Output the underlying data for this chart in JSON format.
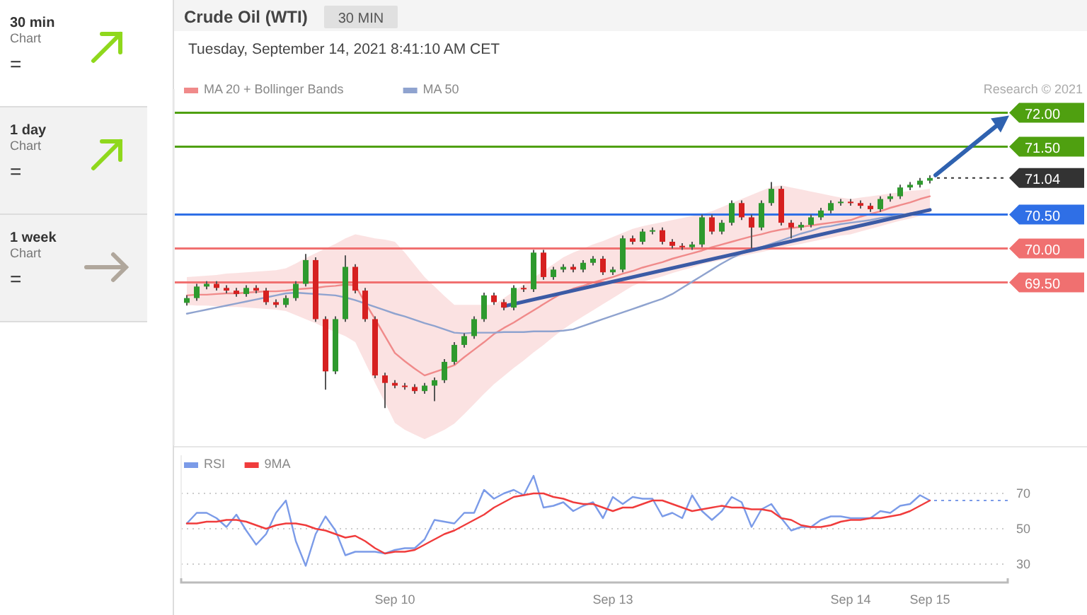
{
  "chart_data": [
    {
      "type": "other",
      "annotations": [
        "30 min",
        "Chart",
        "=",
        "1 day",
        "Chart",
        "=",
        "1 week",
        "Chart",
        "="
      ]
    },
    {
      "type": "candlestick",
      "title": "Crude Oil (WTI)",
      "subtitle": "Tuesday, September 14, 2021 8:41:10 AM CET",
      "annotations": [
        "30 MIN",
        "Research © 2021"
      ],
      "categories": [
        null,
        null,
        null,
        null,
        null,
        null,
        null,
        null,
        null,
        null,
        null,
        null,
        null,
        null,
        null,
        null,
        null,
        null,
        null,
        null,
        null,
        null,
        null,
        null,
        null,
        null,
        null,
        null,
        null,
        null,
        null,
        null,
        null,
        null,
        null,
        null,
        null,
        null,
        null,
        null,
        null,
        null,
        null,
        null,
        null,
        null,
        null,
        null,
        null,
        null,
        null,
        null,
        null,
        null,
        null,
        null,
        null,
        null,
        null,
        null,
        null,
        null,
        null,
        null,
        null,
        null,
        null,
        null,
        null,
        null,
        null,
        null,
        null,
        null,
        null,
        null
      ],
      "ohlc": [
        [
          69.2,
          69.31,
          69.16,
          69.27
        ],
        [
          69.27,
          69.48,
          69.23,
          69.44
        ],
        [
          69.44,
          69.52,
          69.4,
          69.48
        ],
        [
          69.48,
          69.52,
          69.38,
          69.42
        ],
        [
          69.42,
          69.46,
          69.34,
          69.38
        ],
        [
          69.38,
          69.42,
          69.29,
          69.33
        ],
        [
          69.33,
          69.46,
          69.29,
          69.42
        ],
        [
          69.42,
          69.46,
          69.34,
          69.38
        ],
        [
          69.38,
          69.42,
          69.17,
          69.21
        ],
        [
          69.21,
          69.25,
          69.13,
          69.17
        ],
        [
          69.17,
          69.31,
          69.13,
          69.27
        ],
        [
          69.27,
          69.52,
          69.23,
          69.48
        ],
        [
          69.48,
          69.92,
          69.44,
          69.83
        ],
        [
          69.83,
          69.87,
          68.92,
          68.96
        ],
        [
          68.96,
          69.0,
          67.92,
          68.19
        ],
        [
          68.19,
          69.0,
          68.15,
          68.96
        ],
        [
          68.96,
          69.9,
          68.92,
          69.73
        ],
        [
          69.73,
          69.77,
          69.34,
          69.38
        ],
        [
          69.38,
          69.42,
          68.92,
          68.96
        ],
        [
          68.96,
          69.0,
          68.09,
          68.13
        ],
        [
          68.13,
          68.17,
          67.65,
          68.02
        ],
        [
          68.02,
          68.06,
          67.94,
          67.98
        ],
        [
          67.98,
          68.02,
          67.92,
          67.96
        ],
        [
          67.96,
          68.0,
          67.86,
          67.9
        ],
        [
          67.9,
          68.02,
          67.86,
          67.98
        ],
        [
          67.98,
          68.1,
          67.75,
          68.06
        ],
        [
          68.06,
          68.37,
          68.02,
          68.33
        ],
        [
          68.33,
          68.62,
          68.29,
          68.58
        ],
        [
          68.58,
          68.75,
          68.54,
          68.71
        ],
        [
          68.71,
          69.0,
          68.67,
          68.96
        ],
        [
          68.96,
          69.35,
          68.92,
          69.31
        ],
        [
          69.31,
          69.35,
          69.17,
          69.21
        ],
        [
          69.21,
          69.25,
          69.09,
          69.13
        ],
        [
          69.13,
          69.46,
          69.09,
          69.42
        ],
        [
          69.42,
          69.46,
          69.36,
          69.4
        ],
        [
          69.4,
          69.98,
          69.36,
          69.94
        ],
        [
          69.94,
          69.98,
          69.54,
          69.58
        ],
        [
          69.58,
          69.73,
          69.54,
          69.69
        ],
        [
          69.69,
          69.77,
          69.65,
          69.73
        ],
        [
          69.73,
          69.77,
          69.65,
          69.69
        ],
        [
          69.69,
          69.83,
          69.65,
          69.79
        ],
        [
          69.79,
          69.89,
          69.75,
          69.85
        ],
        [
          69.85,
          69.89,
          69.61,
          69.65
        ],
        [
          69.65,
          69.73,
          69.61,
          69.69
        ],
        [
          69.69,
          70.19,
          69.65,
          70.15
        ],
        [
          70.15,
          70.19,
          70.06,
          70.1
        ],
        [
          70.1,
          70.29,
          70.06,
          70.25
        ],
        [
          70.25,
          70.31,
          70.21,
          70.27
        ],
        [
          70.27,
          70.31,
          70.06,
          70.1
        ],
        [
          70.1,
          70.14,
          70.0,
          70.04
        ],
        [
          70.04,
          70.08,
          69.98,
          70.02
        ],
        [
          70.02,
          70.1,
          69.98,
          70.06
        ],
        [
          70.06,
          70.5,
          70.02,
          70.46
        ],
        [
          70.46,
          70.5,
          70.21,
          70.25
        ],
        [
          70.25,
          70.42,
          70.21,
          70.38
        ],
        [
          70.38,
          70.71,
          70.34,
          70.67
        ],
        [
          70.67,
          70.71,
          70.42,
          70.46
        ],
        [
          70.46,
          70.5,
          70.0,
          70.31
        ],
        [
          70.31,
          70.71,
          70.27,
          70.67
        ],
        [
          70.67,
          70.98,
          70.63,
          70.88
        ],
        [
          70.88,
          70.92,
          70.34,
          70.38
        ],
        [
          70.38,
          70.42,
          70.15,
          70.31
        ],
        [
          70.31,
          70.39,
          70.27,
          70.35
        ],
        [
          70.35,
          70.5,
          70.31,
          70.46
        ],
        [
          70.46,
          70.6,
          70.42,
          70.56
        ],
        [
          70.56,
          70.71,
          70.52,
          70.67
        ],
        [
          70.67,
          70.73,
          70.63,
          70.69
        ],
        [
          70.69,
          70.73,
          70.63,
          70.67
        ],
        [
          70.67,
          70.71,
          70.59,
          70.63
        ],
        [
          70.63,
          70.67,
          70.54,
          70.58
        ],
        [
          70.58,
          70.77,
          70.54,
          70.73
        ],
        [
          70.73,
          70.81,
          70.69,
          70.77
        ],
        [
          70.77,
          70.94,
          70.73,
          70.9
        ],
        [
          70.9,
          70.98,
          70.86,
          70.94
        ],
        [
          70.94,
          71.04,
          70.9,
          71.0
        ],
        [
          71.0,
          71.08,
          70.96,
          71.04
        ]
      ],
      "series": [
        {
          "name": "MA 20 + Bollinger Bands",
          "type": "line",
          "color": "#f08a8a",
          "values": [
            69.31,
            69.32,
            69.32,
            69.33,
            69.34,
            69.34,
            69.35,
            69.36,
            69.37,
            69.37,
            69.38,
            69.4,
            69.41,
            69.42,
            69.44,
            69.45,
            69.47,
            69.46,
            69.2,
            68.96,
            68.71,
            68.46,
            68.34,
            68.23,
            68.13,
            68.18,
            68.23,
            68.28,
            68.4,
            68.51,
            68.62,
            68.74,
            68.83,
            68.91,
            69.0,
            69.09,
            69.18,
            69.27,
            69.35,
            69.41,
            69.45,
            69.5,
            69.54,
            69.58,
            69.63,
            69.67,
            69.72,
            69.76,
            69.8,
            69.85,
            69.89,
            69.93,
            69.97,
            70.02,
            70.06,
            70.1,
            70.14,
            70.18,
            70.21,
            70.25,
            70.28,
            70.3,
            70.32,
            70.34,
            70.36,
            70.38,
            70.4,
            70.42,
            70.47,
            70.51,
            70.55,
            70.6,
            70.64,
            70.68,
            70.73,
            70.77
          ],
          "upper": [
            69.58,
            69.59,
            69.6,
            69.61,
            69.63,
            69.64,
            69.65,
            69.66,
            69.67,
            69.68,
            69.71,
            69.78,
            69.86,
            69.93,
            70.0,
            70.07,
            70.15,
            70.21,
            70.18,
            70.15,
            70.13,
            70.1,
            69.94,
            69.76,
            69.58,
            69.44,
            69.3,
            69.17,
            69.17,
            69.17,
            69.17,
            69.17,
            69.27,
            69.37,
            69.47,
            69.57,
            69.67,
            69.77,
            69.87,
            69.94,
            70.0,
            70.06,
            70.11,
            70.17,
            70.23,
            70.29,
            70.33,
            70.36,
            70.39,
            70.42,
            70.45,
            70.48,
            70.51,
            70.55,
            70.61,
            70.67,
            70.73,
            70.79,
            70.85,
            70.91,
            70.93,
            70.9,
            70.87,
            70.84,
            70.81,
            70.78,
            70.75,
            70.73,
            70.75,
            70.77,
            70.79,
            70.81,
            70.83,
            70.85,
            70.86,
            70.88
          ],
          "lower": [
            69.17,
            69.16,
            69.16,
            69.15,
            69.14,
            69.14,
            69.13,
            69.12,
            69.11,
            69.1,
            69.08,
            69.02,
            68.96,
            68.9,
            68.83,
            68.77,
            68.71,
            68.62,
            68.32,
            68.02,
            67.73,
            67.43,
            67.33,
            67.26,
            67.19,
            67.26,
            67.33,
            67.42,
            67.56,
            67.71,
            67.86,
            68.0,
            68.12,
            68.24,
            68.35,
            68.47,
            68.58,
            68.7,
            68.81,
            68.91,
            69.0,
            69.09,
            69.18,
            69.27,
            69.36,
            69.45,
            69.51,
            69.55,
            69.59,
            69.64,
            69.68,
            69.72,
            69.77,
            69.8,
            69.83,
            69.86,
            69.89,
            69.92,
            69.95,
            69.98,
            70.01,
            70.04,
            70.07,
            70.1,
            70.13,
            70.16,
            70.19,
            70.21,
            70.25,
            70.29,
            70.33,
            70.37,
            70.41,
            70.44,
            70.48,
            70.52
          ]
        },
        {
          "name": "MA 50",
          "type": "line",
          "color": "#8fa3cf",
          "values": [
            69.04,
            69.07,
            69.1,
            69.13,
            69.16,
            69.19,
            69.22,
            69.25,
            69.28,
            69.31,
            69.34,
            69.35,
            69.34,
            69.33,
            69.32,
            69.31,
            69.28,
            69.24,
            69.19,
            69.14,
            69.09,
            69.04,
            69.0,
            68.95,
            68.9,
            68.86,
            68.81,
            68.76,
            68.75,
            68.76,
            68.76,
            68.76,
            68.77,
            68.77,
            68.77,
            68.78,
            68.78,
            68.78,
            68.79,
            68.81,
            68.86,
            68.91,
            68.96,
            69.01,
            69.06,
            69.11,
            69.16,
            69.21,
            69.26,
            69.33,
            69.42,
            69.51,
            69.6,
            69.69,
            69.78,
            69.86,
            69.93,
            69.98,
            70.02,
            70.07,
            70.12,
            70.17,
            70.22,
            70.26,
            70.31,
            70.33,
            70.36,
            70.38,
            70.4,
            70.42,
            70.45,
            70.47,
            70.49,
            70.52,
            70.54,
            70.56
          ]
        },
        {
          "type": "line",
          "color": "#3b5ba5",
          "values": [
            null,
            null,
            null,
            null,
            null,
            null,
            null,
            null,
            null,
            null,
            null,
            null,
            null,
            null,
            null,
            null,
            null,
            null,
            null,
            null,
            null,
            null,
            null,
            null,
            null,
            null,
            null,
            null,
            null,
            null,
            null,
            null,
            69.15,
            null,
            null,
            null,
            null,
            null,
            null,
            null,
            null,
            null,
            null,
            null,
            null,
            null,
            null,
            null,
            null,
            null,
            null,
            null,
            null,
            null,
            null,
            null,
            null,
            null,
            null,
            null,
            null,
            null,
            null,
            null,
            null,
            null,
            null,
            null,
            null,
            null,
            null,
            null,
            null,
            null,
            null,
            70.57
          ]
        }
      ],
      "legend": "top left",
      "ylim": [
        67.1,
        72.35
      ],
      "yticks": [
        {
          "value": 72.0,
          "label": "72.00"
        },
        {
          "value": 71.5,
          "label": "71.50"
        },
        {
          "value": 71.04,
          "label": "71.04"
        },
        {
          "value": 70.5,
          "label": "70.50"
        },
        {
          "value": 70.0,
          "label": "70.00"
        },
        {
          "value": 69.5,
          "label": "69.50"
        }
      ],
      "ref_lines": [
        {
          "axis": "y",
          "value": 72.0,
          "color": "#4fa010"
        },
        {
          "axis": "y",
          "value": 71.5,
          "color": "#4fa010"
        },
        {
          "axis": "y",
          "value": 70.5,
          "color": "#2f6fe6"
        },
        {
          "axis": "y",
          "value": 70.0,
          "color": "#f07070"
        },
        {
          "axis": "y",
          "value": 69.5,
          "color": "#f07070"
        }
      ]
    },
    {
      "type": "line",
      "ylim": [
        19.6,
        91.6
      ],
      "categories": [
        null,
        null,
        null,
        null,
        null,
        null,
        null,
        null,
        null,
        null,
        null,
        null,
        null,
        null,
        null,
        null,
        null,
        null,
        null,
        null,
        null,
        "Sep 10",
        null,
        null,
        null,
        null,
        null,
        null,
        null,
        null,
        null,
        null,
        null,
        null,
        null,
        null,
        null,
        null,
        null,
        null,
        null,
        null,
        null,
        "Sep 13",
        null,
        null,
        null,
        null,
        null,
        null,
        null,
        null,
        null,
        null,
        null,
        null,
        null,
        null,
        null,
        null,
        null,
        null,
        null,
        null,
        null,
        null,
        null,
        "Sep 14",
        null,
        null,
        null,
        null,
        null,
        null,
        null,
        "Sep 15"
      ],
      "yticks": [
        30,
        50,
        70
      ],
      "grid": "y",
      "legend": "top left",
      "series": [
        {
          "name": "RSI",
          "color": "#7b9be8",
          "values": [
            53,
            59,
            59,
            56,
            51,
            58,
            49,
            41,
            47,
            59,
            66,
            43,
            29,
            47,
            57,
            49,
            35,
            37,
            37,
            37,
            36,
            38,
            39,
            39,
            44,
            55,
            54,
            53,
            59,
            59,
            72,
            67,
            70,
            72,
            69,
            80,
            62,
            63,
            65,
            60,
            63,
            65,
            56,
            68,
            64,
            68,
            67,
            67,
            57,
            59,
            56,
            69,
            60,
            55,
            60,
            68,
            65,
            51,
            61,
            64,
            56,
            49,
            51,
            51,
            55,
            57,
            57,
            56,
            56,
            56,
            60,
            59,
            63,
            64,
            69,
            66
          ]
        },
        {
          "name": "9MA",
          "color": "#f03c3c",
          "values": [
            53,
            53,
            54,
            54,
            55,
            55,
            54,
            52,
            50,
            52,
            53,
            53,
            52,
            50,
            49,
            47,
            45,
            46,
            43,
            39,
            36,
            37,
            37,
            38,
            41,
            44,
            47,
            49,
            52,
            55,
            58,
            62,
            65,
            68,
            69,
            70,
            70,
            68,
            67,
            65,
            64,
            64,
            62,
            60,
            62,
            62,
            64,
            66,
            66,
            64,
            62,
            60,
            61,
            62,
            63,
            62,
            62,
            61,
            61,
            60,
            56,
            55,
            52,
            51,
            51,
            52,
            54,
            55,
            55,
            56,
            56,
            57,
            58,
            60,
            63,
            66
          ]
        }
      ]
    }
  ]
}
